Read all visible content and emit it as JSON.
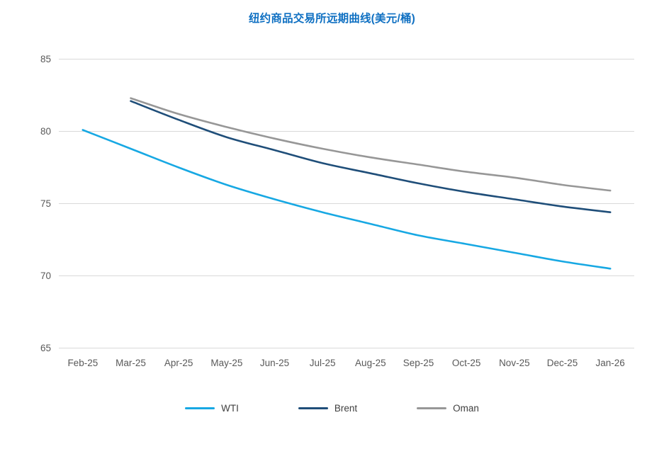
{
  "title": "纽约商品交易所远期曲线(美元/桶)",
  "colors": {
    "title": "#0F70C2",
    "axis_text": "#595959",
    "legend_text": "#404040",
    "gridline": "#D9D9D9",
    "wti": "#17A8E3",
    "brent": "#1F4E79",
    "oman": "#979797"
  },
  "chart_data": {
    "type": "line",
    "title": "纽约商品交易所远期曲线(美元/桶)",
    "categories": [
      "Feb-25",
      "Mar-25",
      "Apr-25",
      "May-25",
      "Jun-25",
      "Jul-25",
      "Aug-25",
      "Sep-25",
      "Oct-25",
      "Nov-25",
      "Dec-25",
      "Jan-26"
    ],
    "series": [
      {
        "name": "WTI",
        "color": "#17A8E3",
        "values": [
          80.1,
          78.8,
          77.5,
          76.3,
          75.3,
          74.4,
          73.6,
          72.8,
          72.2,
          71.6,
          71.0,
          70.5
        ]
      },
      {
        "name": "Brent",
        "color": "#1F4E79",
        "values": [
          null,
          82.1,
          80.8,
          79.6,
          78.7,
          77.8,
          77.1,
          76.4,
          75.8,
          75.3,
          74.8,
          74.4
        ]
      },
      {
        "name": "Oman",
        "color": "#979797",
        "values": [
          null,
          82.3,
          81.2,
          80.3,
          79.5,
          78.8,
          78.2,
          77.7,
          77.2,
          76.8,
          76.3,
          75.9
        ]
      }
    ],
    "ylim": [
      65,
      85
    ],
    "yticks": [
      65,
      70,
      75,
      80,
      85
    ],
    "grid": "horizontal-only",
    "legend_position": "bottom",
    "smooth_lines": true
  }
}
